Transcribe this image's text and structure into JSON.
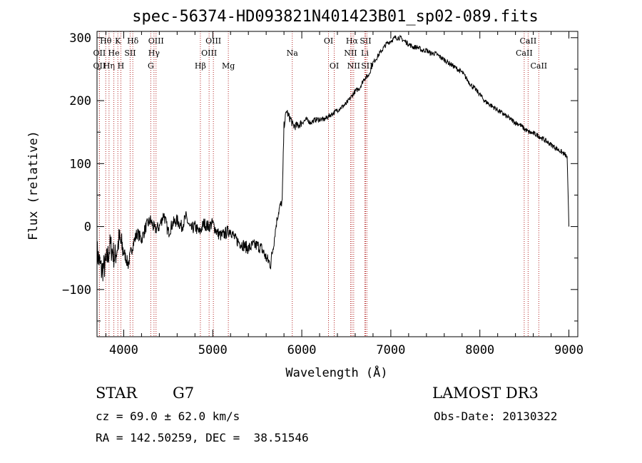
{
  "chart_data": {
    "type": "line",
    "title": "spec-56374-HD093821N401423B01_sp02-089.fits",
    "xlabel": "Wavelength (Å)",
    "ylabel": "Flux (relative)",
    "xlim": [
      3700,
      9100
    ],
    "ylim": [
      -175,
      310
    ],
    "xticks": [
      4000,
      5000,
      6000,
      7000,
      8000,
      9000
    ],
    "yticks": [
      -100,
      0,
      100,
      200,
      300
    ],
    "series": [
      {
        "name": "flux",
        "x": [
          3700,
          3750,
          3800,
          3850,
          3900,
          3950,
          4000,
          4050,
          4100,
          4150,
          4200,
          4250,
          4300,
          4350,
          4400,
          4450,
          4500,
          4550,
          4600,
          4650,
          4700,
          4750,
          4800,
          4850,
          4900,
          4950,
          5000,
          5050,
          5100,
          5150,
          5200,
          5250,
          5300,
          5350,
          5400,
          5450,
          5500,
          5550,
          5600,
          5650,
          5700,
          5720,
          5750,
          5780,
          5800,
          5830,
          5850,
          5880,
          5900,
          5950,
          6000,
          6050,
          6100,
          6150,
          6200,
          6250,
          6300,
          6350,
          6400,
          6450,
          6500,
          6550,
          6600,
          6650,
          6700,
          6750,
          6800,
          6850,
          6900,
          6950,
          7000,
          7050,
          7100,
          7150,
          7200,
          7250,
          7300,
          7350,
          7400,
          7450,
          7500,
          7550,
          7600,
          7650,
          7700,
          7750,
          7800,
          7850,
          7900,
          7950,
          8000,
          8050,
          8100,
          8150,
          8200,
          8250,
          8300,
          8350,
          8400,
          8450,
          8500,
          8550,
          8600,
          8650,
          8700,
          8750,
          8800,
          8850,
          8900,
          8950,
          8980,
          9000
        ],
        "y": [
          -40,
          -70,
          -60,
          -30,
          -50,
          -20,
          -40,
          -60,
          -30,
          -10,
          -20,
          0,
          10,
          -5,
          0,
          20,
          -10,
          5,
          10,
          0,
          15,
          -5,
          0,
          -10,
          5,
          0,
          5,
          -10,
          -15,
          -10,
          -5,
          -20,
          -25,
          -30,
          -35,
          -30,
          -30,
          -35,
          -50,
          -60,
          -10,
          10,
          30,
          40,
          160,
          185,
          175,
          170,
          160,
          160,
          165,
          170,
          165,
          170,
          170,
          170,
          175,
          180,
          185,
          190,
          195,
          205,
          215,
          220,
          235,
          240,
          260,
          270,
          280,
          290,
          295,
          300,
          300,
          295,
          290,
          285,
          285,
          280,
          280,
          275,
          275,
          270,
          265,
          260,
          255,
          250,
          245,
          235,
          225,
          218,
          210,
          200,
          195,
          190,
          185,
          180,
          175,
          170,
          165,
          162,
          155,
          150,
          148,
          145,
          140,
          135,
          130,
          125,
          120,
          115,
          110,
          0
        ]
      }
    ],
    "lines": [
      {
        "name": "Hθ",
        "wl": 3798,
        "row": 1
      },
      {
        "name": "OII",
        "wl": 3727,
        "row": 2
      },
      {
        "name": "OII",
        "wl": 3727,
        "row": 3
      },
      {
        "name": "Hη",
        "wl": 3835,
        "row": 3
      },
      {
        "name": "K",
        "wl": 3934,
        "row": 1
      },
      {
        "name": "He",
        "wl": 3889,
        "row": 2
      },
      {
        "name": "H",
        "wl": 3968,
        "row": 3
      },
      {
        "name": "SII",
        "wl": 4072,
        "row": 2
      },
      {
        "name": "Hδ",
        "wl": 4102,
        "row": 1
      },
      {
        "name": "OIII",
        "wl": 4363,
        "row": 1
      },
      {
        "name": "Hγ",
        "wl": 4340,
        "row": 2
      },
      {
        "name": "G",
        "wl": 4304,
        "row": 3
      },
      {
        "name": "Hβ",
        "wl": 4861,
        "row": 3
      },
      {
        "name": "OIII",
        "wl": 5007,
        "row": 1
      },
      {
        "name": "OIII",
        "wl": 4959,
        "row": 2
      },
      {
        "name": "Mg",
        "wl": 5175,
        "row": 3
      },
      {
        "name": "Na",
        "wl": 5893,
        "row": 2
      },
      {
        "name": "OI",
        "wl": 6300,
        "row": 1
      },
      {
        "name": "OI",
        "wl": 6364,
        "row": 3
      },
      {
        "name": "Hα",
        "wl": 6563,
        "row": 1
      },
      {
        "name": "NII",
        "wl": 6548,
        "row": 2
      },
      {
        "name": "NII",
        "wl": 6583,
        "row": 3
      },
      {
        "name": "SII",
        "wl": 6716,
        "row": 1
      },
      {
        "name": "Li",
        "wl": 6708,
        "row": 2
      },
      {
        "name": "SII",
        "wl": 6731,
        "row": 3
      },
      {
        "name": "CaII",
        "wl": 8542,
        "row": 1
      },
      {
        "name": "CaII",
        "wl": 8498,
        "row": 2
      },
      {
        "name": "CaII",
        "wl": 8662,
        "row": 3
      }
    ]
  },
  "info": {
    "class_label": "STAR",
    "subclass": "G7",
    "survey": "LAMOST DR3",
    "cz": "cz = 69.0 ± 62.0 km/s",
    "obs_date": "Obs-Date: 20130322",
    "coords": "RA = 142.50259, DEC =  38.51546"
  },
  "colors": {
    "line_marker": "#b22222",
    "flux": "#000000"
  }
}
